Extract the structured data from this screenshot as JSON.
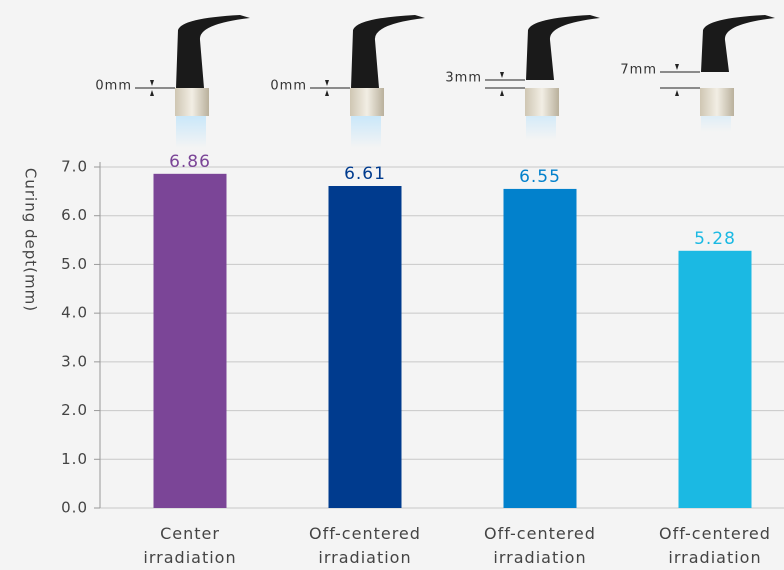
{
  "chart_data": {
    "type": "bar",
    "y_label": "Curing dept(mm)",
    "categories": [
      "Center irradiation",
      "Off-centered irradiation",
      "Off-centered irradiation",
      "Off-centered irradiation"
    ],
    "values": [
      6.86,
      6.61,
      6.55,
      5.28
    ],
    "colors": [
      "#7b4597",
      "#003b8e",
      "#0281cc",
      "#1bb9e3"
    ],
    "annotations": [
      "0mm",
      "0mm",
      "3mm",
      "7mm"
    ],
    "ylim": [
      0,
      7
    ],
    "yticks": [
      {
        "value": 0,
        "label": "0.0"
      },
      {
        "value": 1,
        "label": "1.0"
      },
      {
        "value": 2,
        "label": "2.0"
      },
      {
        "value": 3,
        "label": "3.0"
      },
      {
        "value": 4,
        "label": "4.0"
      },
      {
        "value": 5,
        "label": "5.0"
      },
      {
        "value": 6,
        "label": "6.0"
      },
      {
        "value": 7,
        "label": "7.0"
      }
    ],
    "grid": true
  }
}
